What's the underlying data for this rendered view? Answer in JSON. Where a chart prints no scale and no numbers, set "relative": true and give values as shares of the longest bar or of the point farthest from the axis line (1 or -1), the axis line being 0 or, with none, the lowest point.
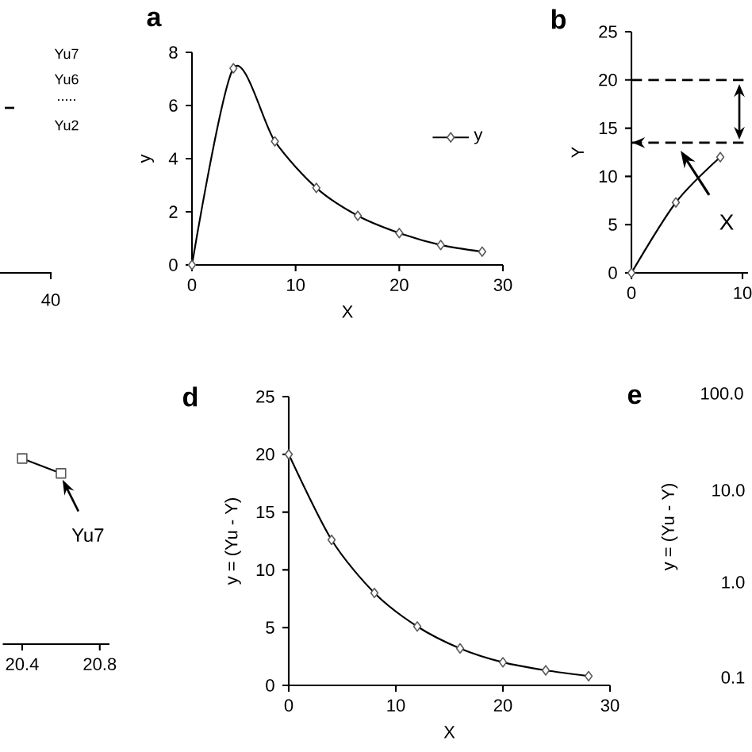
{
  "chart_data": [
    {
      "type": "other",
      "annotations": [
        "Yu7",
        "Yu6",
        ".....",
        "Yu2",
        "40"
      ]
    },
    {
      "type": "line",
      "title": "a",
      "xlabel": "X",
      "ylabel": "y",
      "x": [
        0,
        4,
        8,
        12,
        16,
        20,
        24,
        28
      ],
      "series": [
        {
          "name": "y",
          "color": "#000000",
          "values": [
            0,
            7.4,
            4.65,
            2.9,
            1.85,
            1.2,
            0.75,
            0.5
          ]
        }
      ],
      "xlim": [
        0,
        30
      ],
      "ylim": [
        0,
        8
      ],
      "xticks": [
        0,
        10,
        20,
        30
      ],
      "yticks": [
        0,
        2,
        4,
        6,
        8
      ],
      "marker": "diamond",
      "legend": "right"
    },
    {
      "type": "line",
      "title": "b",
      "ylabel": "Y",
      "x": [
        0,
        4,
        8
      ],
      "series": [
        {
          "color": "#000000",
          "values": [
            0,
            7.3,
            12
          ]
        }
      ],
      "xlim": [
        0,
        10.5
      ],
      "ylim": [
        0,
        25
      ],
      "xticks": [
        0,
        10
      ],
      "yticks": [
        0,
        5,
        10,
        15,
        20,
        25
      ],
      "marker": "diamond",
      "ref_lines": [
        {
          "axis": "y",
          "value": 20,
          "line_style": "dashed"
        },
        {
          "axis": "y",
          "value": 13.5,
          "line_style": "dashed"
        }
      ],
      "annotations": [
        "X"
      ]
    },
    {
      "type": "line",
      "relative": true,
      "x": [
        20.4,
        20.6
      ],
      "series": [
        {
          "color": "#000000",
          "values": [
            1,
            0.92
          ]
        }
      ],
      "xlim": [
        20.3,
        20.85
      ],
      "xticks": [
        20.4,
        20.8
      ],
      "marker": "square",
      "tick_labels": "x",
      "annotations": [
        {
          "text": "Yu7",
          "x": 20.6,
          "y": 0.92
        }
      ]
    },
    {
      "type": "line",
      "title": "d",
      "xlabel": "X",
      "ylabel": "y = (Yu - Y)",
      "x": [
        0,
        4,
        8,
        12,
        16,
        20,
        24,
        28
      ],
      "series": [
        {
          "color": "#000000",
          "values": [
            20,
            12.6,
            8,
            5.1,
            3.2,
            2.0,
            1.3,
            0.8
          ]
        }
      ],
      "xlim": [
        0,
        30
      ],
      "ylim": [
        0,
        25
      ],
      "xticks": [
        0,
        10,
        20,
        30
      ],
      "yticks": [
        0,
        5,
        10,
        15,
        20,
        25
      ],
      "marker": "diamond"
    },
    {
      "type": "other",
      "title": "e",
      "ylabel": "y = (Yu - Y)",
      "annotations": [
        "100.0",
        "10.0",
        "1.0",
        "0.1"
      ]
    }
  ]
}
